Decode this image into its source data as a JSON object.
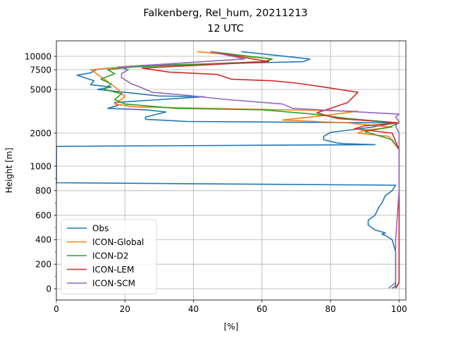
{
  "chart_data": {
    "type": "line",
    "title": "Falkenberg, Rel_hum, 20211213",
    "subtitle": "12 UTC",
    "xlabel": "[%]",
    "ylabel": "Height [m]",
    "xlim": [
      0,
      102
    ],
    "xticks": [
      0,
      20,
      40,
      60,
      80,
      100
    ],
    "ytick_labels": [
      "0",
      "200",
      "400",
      "600",
      "800",
      "1000",
      "2000",
      "5000",
      "7500",
      "10000"
    ],
    "grid": true,
    "legend_position": "lower-left",
    "series": [
      {
        "name": "Obs",
        "color": "#1f77b4",
        "points": [
          [
            98,
            4
          ],
          [
            99,
            20
          ],
          [
            99,
            100
          ],
          [
            99,
            200
          ],
          [
            99,
            300
          ],
          [
            98,
            400
          ],
          [
            96,
            435
          ],
          [
            95,
            445
          ],
          [
            96,
            455
          ],
          [
            93,
            480
          ],
          [
            91,
            520
          ],
          [
            91,
            560
          ],
          [
            93,
            600
          ],
          [
            94,
            660
          ],
          [
            95,
            700
          ],
          [
            96,
            760
          ],
          [
            98,
            800
          ],
          [
            99,
            845
          ],
          [
            0,
            865
          ],
          [
            0,
            1600
          ],
          [
            93,
            1650
          ],
          [
            84,
            1680
          ],
          [
            82,
            1700
          ],
          [
            78,
            1800
          ],
          [
            78,
            1900
          ],
          [
            80,
            2050
          ],
          [
            92,
            2400
          ],
          [
            99,
            2700
          ],
          [
            38,
            2800
          ],
          [
            26,
            2950
          ],
          [
            26,
            3100
          ],
          [
            32,
            3450
          ],
          [
            26,
            3600
          ],
          [
            15,
            3700
          ],
          [
            18,
            3900
          ],
          [
            17,
            4100
          ],
          [
            30,
            4300
          ],
          [
            43,
            4500
          ],
          [
            30,
            4550
          ],
          [
            12,
            5000
          ],
          [
            16,
            5300
          ],
          [
            10,
            5600
          ],
          [
            11,
            6100
          ],
          [
            6,
            6800
          ],
          [
            10,
            7100
          ],
          [
            12,
            7600
          ],
          [
            25,
            8300
          ],
          [
            72,
            9000
          ],
          [
            74,
            9500
          ],
          [
            54,
            10500
          ]
        ]
      },
      {
        "name": "ICON-Global",
        "color": "#ff7f0e",
        "points": [
          [
            99,
            4
          ],
          [
            100,
            50
          ],
          [
            100,
            200
          ],
          [
            100,
            400
          ],
          [
            100,
            800
          ],
          [
            100,
            1000
          ],
          [
            100,
            1500
          ],
          [
            97,
            1900
          ],
          [
            88,
            2000
          ],
          [
            90,
            2200
          ],
          [
            98,
            2400
          ],
          [
            85,
            2700
          ],
          [
            66,
            2900
          ],
          [
            78,
            3200
          ],
          [
            88,
            3500
          ],
          [
            23,
            3800
          ],
          [
            17,
            4000
          ],
          [
            20,
            4500
          ],
          [
            18,
            5000
          ],
          [
            15,
            6000
          ],
          [
            10,
            7500
          ],
          [
            20,
            8000
          ],
          [
            60,
            9000
          ],
          [
            63,
            9500
          ],
          [
            41,
            10500
          ]
        ]
      },
      {
        "name": "ICON-D2",
        "color": "#2ca02c",
        "points": [
          [
            99,
            4
          ],
          [
            100,
            50
          ],
          [
            100,
            200
          ],
          [
            100,
            400
          ],
          [
            100,
            800
          ],
          [
            100,
            1000
          ],
          [
            100,
            1500
          ],
          [
            98,
            1800
          ],
          [
            90,
            2100
          ],
          [
            97,
            2400
          ],
          [
            100,
            2700
          ],
          [
            85,
            3000
          ],
          [
            75,
            3300
          ],
          [
            60,
            3600
          ],
          [
            35,
            3700
          ],
          [
            20,
            4000
          ],
          [
            17,
            4300
          ],
          [
            19,
            4700
          ],
          [
            14,
            5000
          ],
          [
            16,
            5700
          ],
          [
            13,
            6300
          ],
          [
            17,
            7000
          ],
          [
            15,
            7500
          ],
          [
            22,
            8000
          ],
          [
            61,
            9000
          ],
          [
            63,
            9500
          ],
          [
            45,
            10500
          ]
        ]
      },
      {
        "name": "ICON-LEM",
        "color": "#d62728",
        "points": [
          [
            99,
            4
          ],
          [
            100,
            50
          ],
          [
            100,
            200
          ],
          [
            100,
            400
          ],
          [
            100,
            800
          ],
          [
            100,
            1000
          ],
          [
            100,
            1500
          ],
          [
            98,
            2000
          ],
          [
            87,
            2300
          ],
          [
            90,
            2500
          ],
          [
            100,
            2700
          ],
          [
            82,
            3000
          ],
          [
            76,
            3400
          ],
          [
            80,
            3700
          ],
          [
            85,
            4100
          ],
          [
            88,
            4800
          ],
          [
            78,
            5300
          ],
          [
            70,
            5800
          ],
          [
            63,
            6100
          ],
          [
            51,
            6300
          ],
          [
            47,
            6900
          ],
          [
            33,
            7200
          ],
          [
            25,
            7800
          ],
          [
            62,
            9000
          ],
          [
            45,
            10500
          ]
        ]
      },
      {
        "name": "ICON-SCM",
        "color": "#9467bd",
        "points": [
          [
            97,
            4
          ],
          [
            99,
            50
          ],
          [
            99,
            200
          ],
          [
            99,
            400
          ],
          [
            100,
            800
          ],
          [
            100,
            1000
          ],
          [
            100,
            1500
          ],
          [
            100,
            2000
          ],
          [
            99,
            2500
          ],
          [
            100,
            2800
          ],
          [
            99,
            3100
          ],
          [
            100,
            3300
          ],
          [
            69,
            3700
          ],
          [
            66,
            4000
          ],
          [
            50,
            4300
          ],
          [
            38,
            4600
          ],
          [
            28,
            4800
          ],
          [
            25,
            5200
          ],
          [
            22,
            5700
          ],
          [
            19,
            6500
          ],
          [
            19,
            7000
          ],
          [
            21,
            7500
          ],
          [
            18,
            8000
          ],
          [
            55,
            9500
          ],
          [
            45,
            10500
          ]
        ]
      }
    ]
  }
}
